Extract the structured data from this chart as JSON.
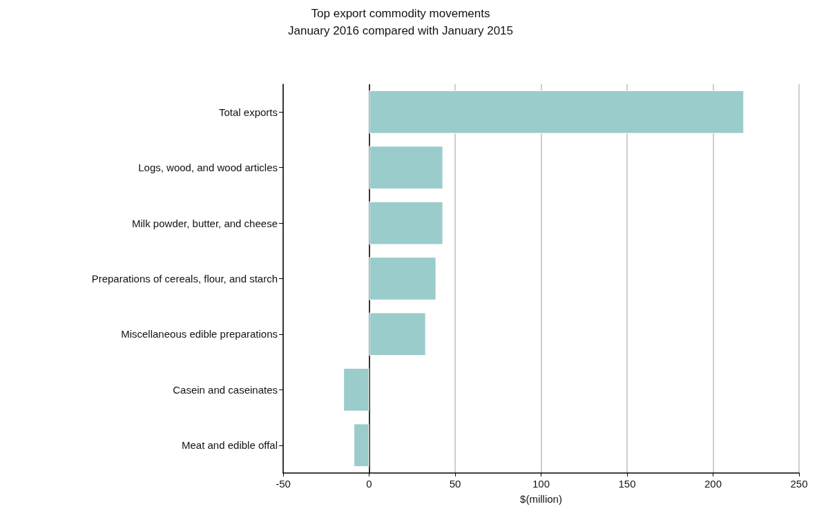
{
  "chart_data": {
    "type": "bar",
    "orientation": "horizontal",
    "title": "Top export commodity movements",
    "subtitle": "January 2016 compared with January 2015",
    "xlabel": "$(million)",
    "categories": [
      "Total exports",
      "Logs, wood, and wood articles",
      "Milk powder, butter, and cheese",
      "Preparations of cereals, flour, and starch",
      "Miscellaneous edible preparations",
      "Casein and caseinates",
      "Meat and edible offal"
    ],
    "values": [
      218,
      43,
      43,
      39,
      33,
      -15,
      -9
    ],
    "color": "#9bcccc",
    "xlim": [
      -50,
      250
    ],
    "xticks": [
      -50,
      0,
      50,
      100,
      150,
      200,
      250
    ],
    "grid": "x",
    "ref_lines": [
      {
        "axis": "x",
        "value": 0,
        "color": "#000000",
        "line_style": "solid"
      }
    ]
  }
}
